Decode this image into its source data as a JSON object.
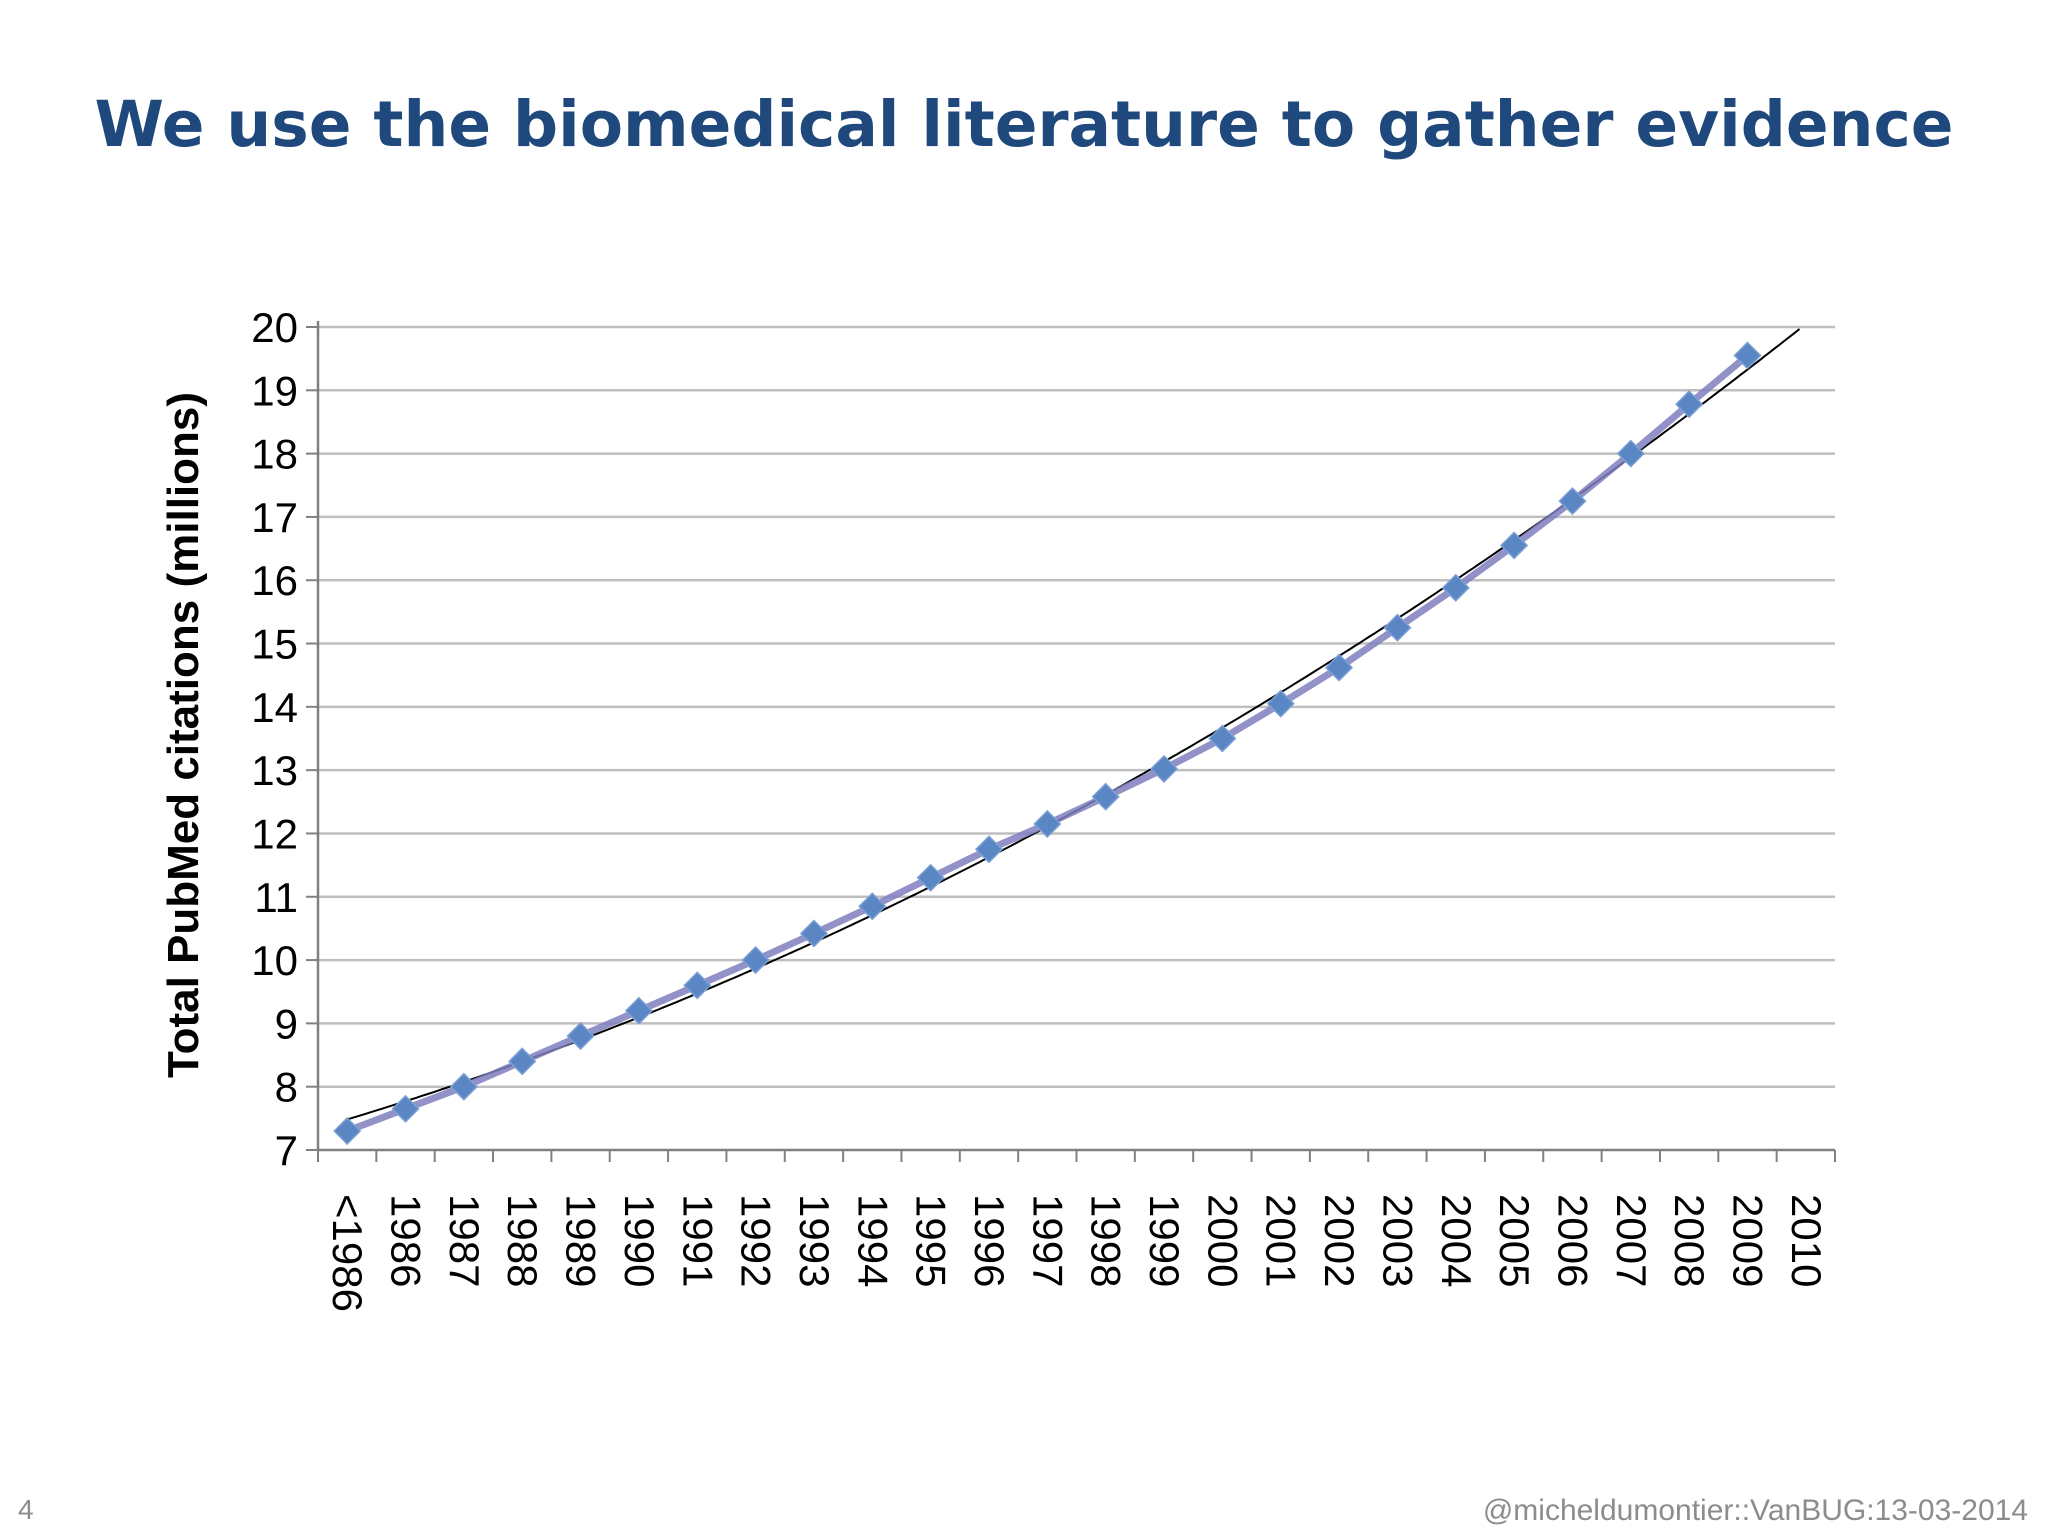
{
  "slide": {
    "title": "We use the biomedical literature to gather evidence",
    "number": "4",
    "footer": "@micheldumontier::VanBUG:13-03-2014"
  },
  "colors": {
    "title": "#1f497d",
    "series": "#7f7fbf",
    "marker": "#5b86c4",
    "trend": "#000000",
    "grid": "#bfbfbf",
    "footer": "#8c8c8c"
  },
  "chart_data": {
    "type": "line",
    "title": "",
    "xlabel": "",
    "ylabel": "Total PubMed citations (millions)",
    "categories": [
      "<1986",
      "1986",
      "1987",
      "1988",
      "1989",
      "1990",
      "1991",
      "1992",
      "1993",
      "1994",
      "1995",
      "1996",
      "1997",
      "1998",
      "1999",
      "2000",
      "2001",
      "2002",
      "2003",
      "2004",
      "2005",
      "2006",
      "2007",
      "2008",
      "2009",
      "2010"
    ],
    "series": [
      {
        "values": [
          7.3,
          7.65,
          8.0,
          8.4,
          8.8,
          9.2,
          9.6,
          10.0,
          10.42,
          10.85,
          11.3,
          11.75,
          12.15,
          12.58,
          13.02,
          13.5,
          14.05,
          14.62,
          15.25,
          15.88,
          16.55,
          17.25,
          18.0,
          18.78,
          19.55,
          null
        ]
      }
    ],
    "trendline": true,
    "ylim": [
      7,
      20
    ],
    "yticks": [
      7,
      8,
      9,
      10,
      11,
      12,
      13,
      14,
      15,
      16,
      17,
      18,
      19,
      20
    ],
    "grid": true,
    "legend": "none"
  }
}
